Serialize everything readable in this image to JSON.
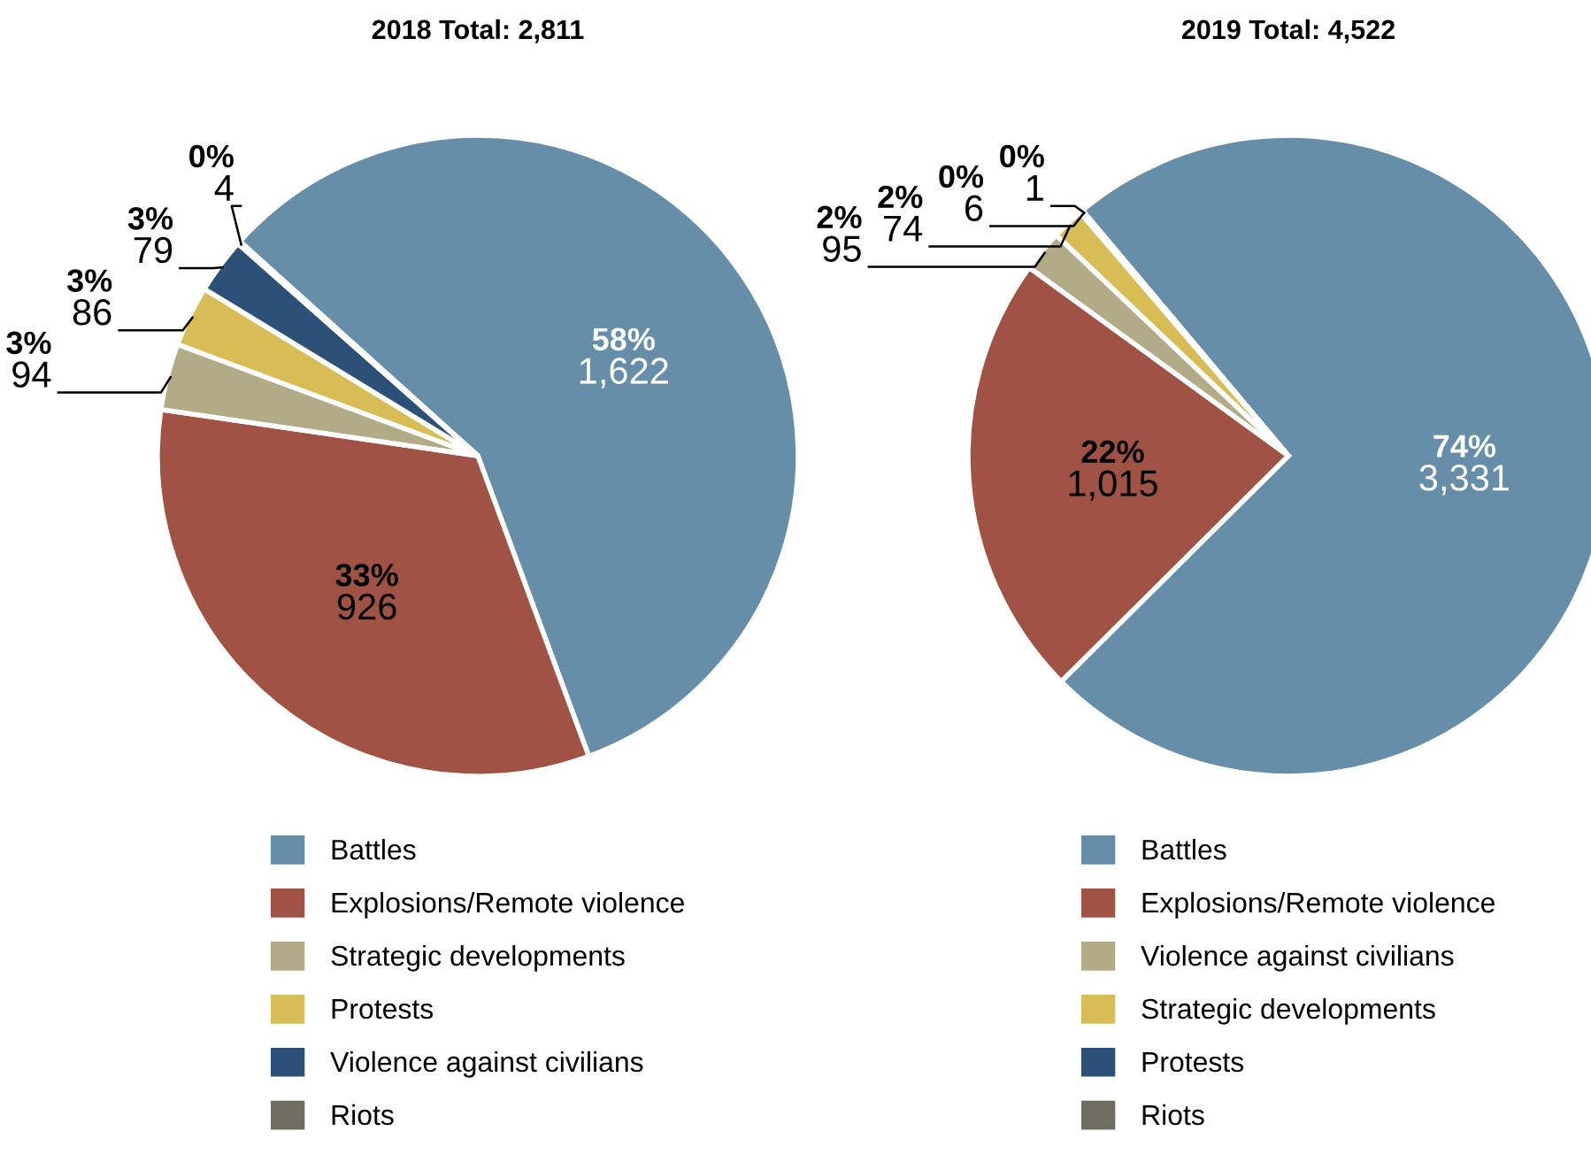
{
  "chart_data": [
    {
      "type": "pie",
      "title": "2018 Total: 2,811",
      "categories": [
        "Battles",
        "Explosions/Remote violence",
        "Strategic developments",
        "Protests",
        "Violence against civilians",
        "Riots"
      ],
      "values": [
        1622,
        926,
        94,
        86,
        79,
        4
      ],
      "colors": [
        "#668ea9",
        "#a05244",
        "#b1ab88",
        "#d8bc55",
        "#2d5079",
        "#6e6e60"
      ],
      "value_labels": [
        "58%\n1,622",
        "33%\n926",
        "3%\n94",
        "3%\n86",
        "3%\n79",
        "0%\n4"
      ],
      "legend": "bottom"
    },
    {
      "type": "pie",
      "title": "2019 Total: 4,522",
      "categories": [
        "Battles",
        "Explosions/Remote violence",
        "Violence against civilians",
        "Strategic developments",
        "Protests",
        "Riots"
      ],
      "values": [
        3331,
        1015,
        95,
        74,
        6,
        1
      ],
      "colors": [
        "#668ea9",
        "#a05244",
        "#b1ab88",
        "#d8bc55",
        "#2d5079",
        "#6e6e60"
      ],
      "value_labels": [
        "74%\n3,331",
        "22%\n1,015",
        "2%\n95",
        "2%\n74",
        "0%\n6",
        "0%\n1"
      ],
      "legend": "bottom"
    }
  ]
}
